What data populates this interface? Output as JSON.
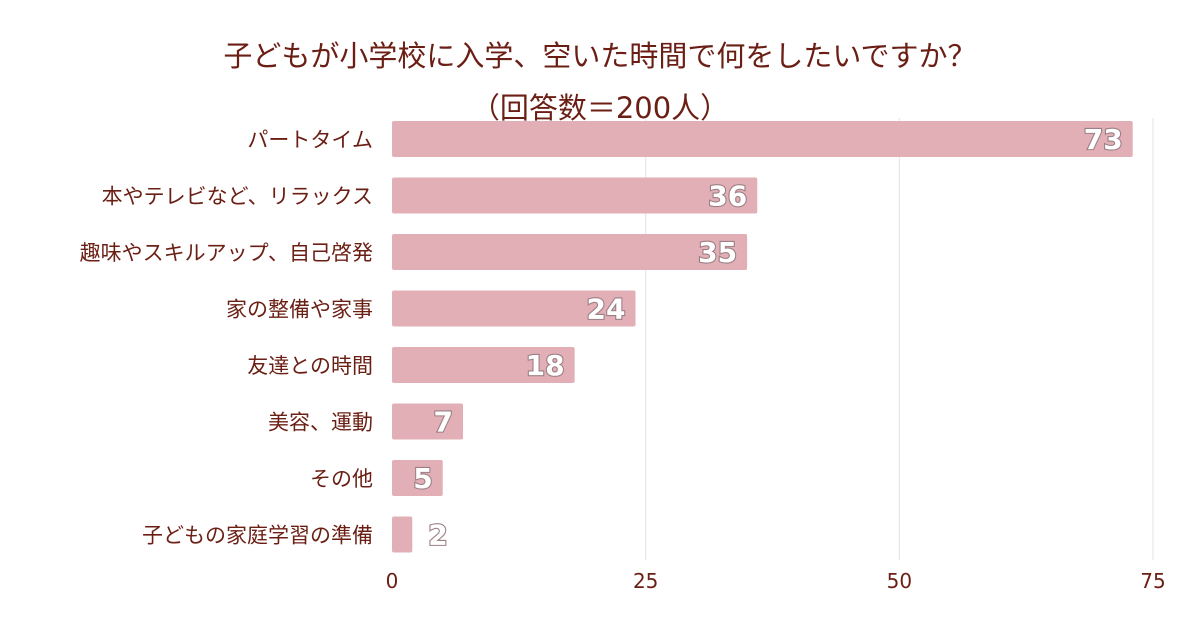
{
  "chart_data": {
    "type": "bar",
    "orientation": "horizontal",
    "title": "子どもが小学校に入学、空いた時間で何をしたいですか？",
    "subtitle": "（回答数＝200人）",
    "categories": [
      "パートタイム",
      "本やテレビなど、リラックス",
      "趣味やスキルアップ、自己啓発",
      "家の整備や家事",
      "友達との時間",
      "美容、運動",
      "その他",
      "子どもの家庭学習の準備"
    ],
    "values": [
      73,
      36,
      35,
      24,
      18,
      7,
      5,
      2
    ],
    "xlim": [
      0,
      75
    ],
    "xticks": [
      0,
      25,
      50,
      75
    ],
    "xlabel": "",
    "ylabel": "",
    "grid": true,
    "legend": "none",
    "colors": {
      "bar": "#e2afb6",
      "text": "#6b1f14",
      "grid": "#e3e3e3",
      "value_label_fill": "#ffffff",
      "value_label_stroke": "#9a7f84"
    }
  }
}
